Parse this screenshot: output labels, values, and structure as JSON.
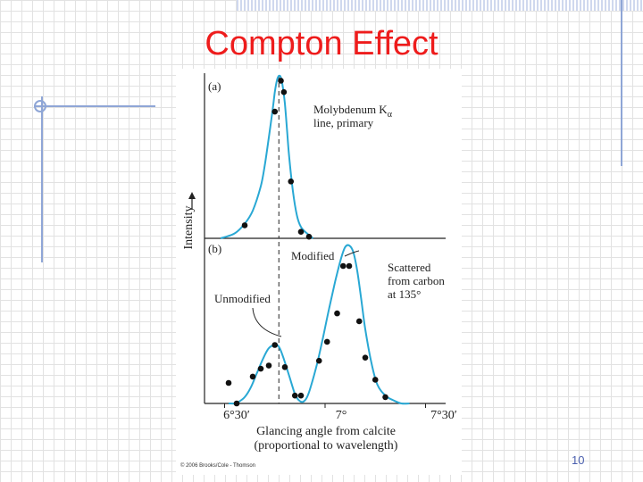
{
  "slide": {
    "title": "Compton Effect",
    "page_number": "10"
  },
  "colors": {
    "title": "#ee1c1c",
    "curve": "#29a8d4",
    "points": "#111111",
    "text": "#222222",
    "page_number": "#4a5fae"
  },
  "chart_data": {
    "type": "line",
    "ylabel": "Intensity",
    "xlabel_line1": "Glancing angle from calcite",
    "xlabel_line2": "(proportional to wavelength)",
    "x_tick_labels": [
      "6°30′",
      "7°",
      "7°30′"
    ],
    "x_tick_values": [
      6.5,
      7.0,
      7.5
    ],
    "xlim": [
      6.4,
      7.6
    ],
    "credit": "© 2006 Brooks/Cole - Thomson",
    "panels": [
      {
        "label": "(a)",
        "annotation_line1": "Molybdenum K",
        "annotation_subscript": "α",
        "annotation_line2": "line, primary",
        "ylim": [
          0,
          1.0
        ],
        "dashed_x": 6.77,
        "curve": {
          "x": [
            6.48,
            6.55,
            6.6,
            6.64,
            6.68,
            6.7,
            6.72,
            6.74,
            6.75,
            6.76,
            6.77,
            6.78,
            6.79,
            6.8,
            6.81,
            6.82,
            6.84,
            6.86,
            6.88,
            6.91,
            6.94
          ],
          "y": [
            0.0,
            0.03,
            0.09,
            0.17,
            0.32,
            0.45,
            0.62,
            0.8,
            0.9,
            0.97,
            1.0,
            0.99,
            0.93,
            0.83,
            0.68,
            0.52,
            0.29,
            0.14,
            0.07,
            0.03,
            0.0
          ]
        },
        "points": {
          "x": [
            6.6,
            6.75,
            6.78,
            6.795,
            6.83,
            6.88,
            6.92
          ],
          "y": [
            0.08,
            0.78,
            0.97,
            0.9,
            0.35,
            0.04,
            0.01
          ]
        }
      },
      {
        "label": "(b)",
        "label_modified": "Modified",
        "label_unmodified": "Unmodified",
        "label_scattered_1": "Scattered",
        "label_scattered_2": "from carbon",
        "label_scattered_3": "at 135°",
        "ylim": [
          0,
          1.0
        ],
        "dashed_x": 6.77,
        "curve": {
          "x": [
            6.52,
            6.55,
            6.57,
            6.6,
            6.63,
            6.66,
            6.69,
            6.72,
            6.75,
            6.77,
            6.79,
            6.82,
            6.85,
            6.87,
            6.89,
            6.91,
            6.93,
            6.96,
            6.99,
            7.02,
            7.05,
            7.08,
            7.1,
            7.12,
            7.14,
            7.16,
            7.18,
            7.2,
            7.23,
            7.26,
            7.3,
            7.34,
            7.38,
            7.42
          ],
          "y": [
            0.0,
            0.0,
            0.01,
            0.04,
            0.1,
            0.19,
            0.28,
            0.35,
            0.37,
            0.36,
            0.3,
            0.18,
            0.06,
            0.02,
            0.01,
            0.04,
            0.11,
            0.25,
            0.42,
            0.6,
            0.77,
            0.92,
            0.99,
            1.0,
            0.96,
            0.84,
            0.66,
            0.47,
            0.26,
            0.12,
            0.05,
            0.02,
            0.0,
            0.0
          ]
        },
        "points": {
          "x": [
            6.52,
            6.56,
            6.64,
            6.68,
            6.72,
            6.75,
            6.8,
            6.85,
            6.88,
            6.97,
            7.01,
            7.06,
            7.09,
            7.12,
            7.17,
            7.2,
            7.25,
            7.3
          ],
          "y": [
            0.13,
            0.0,
            0.17,
            0.22,
            0.24,
            0.37,
            0.23,
            0.05,
            0.05,
            0.27,
            0.39,
            0.57,
            0.87,
            0.87,
            0.52,
            0.29,
            0.15,
            0.04
          ]
        }
      }
    ]
  }
}
